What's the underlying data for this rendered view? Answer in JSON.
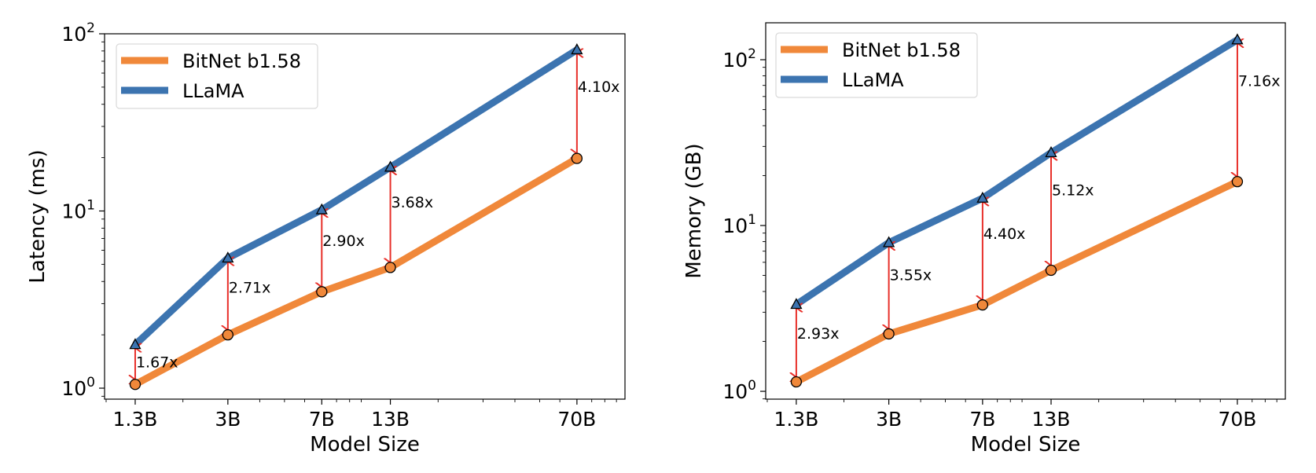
{
  "chart_data": [
    {
      "type": "line",
      "title": "",
      "xlabel": "Model Size",
      "ylabel": "Latency (ms)",
      "xscale": "log",
      "yscale": "log",
      "categories": [
        "1.3B",
        "3B",
        "7B",
        "13B",
        "70B"
      ],
      "x": [
        1.3,
        3,
        7,
        13,
        70
      ],
      "xlim": [
        0.986,
        108
      ],
      "ylim": [
        0.867,
        100
      ],
      "yticks": [
        {
          "value": 1,
          "base": "10",
          "exp": "0"
        },
        {
          "value": 10,
          "base": "10",
          "exp": "1"
        },
        {
          "value": 100,
          "base": "10",
          "exp": "2"
        }
      ],
      "grid": false,
      "legend": "top-left",
      "series": [
        {
          "name": "BitNet b1.58",
          "color": "#F0883A",
          "marker": "circle",
          "values": [
            1.05,
            2.0,
            3.5,
            4.8,
            19.8
          ]
        },
        {
          "name": "LLaMA",
          "color": "#3C74B0",
          "marker": "triangle",
          "values": [
            1.76,
            5.42,
            10.15,
            17.66,
            81.18
          ]
        }
      ],
      "annotations": {
        "color": "#E8302A",
        "labels": [
          "1.67x",
          "2.71x",
          "2.90x",
          "3.68x",
          "4.10x"
        ]
      }
    },
    {
      "type": "line",
      "title": "",
      "xlabel": "Model Size",
      "ylabel": "Memory (GB)",
      "xscale": "log",
      "yscale": "log",
      "categories": [
        "1.3B",
        "3B",
        "7B",
        "13B",
        "70B"
      ],
      "x": [
        1.3,
        3,
        7,
        13,
        70
      ],
      "xlim": [
        0.986,
        108
      ],
      "ylim": [
        0.897,
        167
      ],
      "yticks": [
        {
          "value": 1,
          "base": "10",
          "exp": "0"
        },
        {
          "value": 10,
          "base": "10",
          "exp": "1"
        },
        {
          "value": 100,
          "base": "10",
          "exp": "2"
        }
      ],
      "grid": false,
      "legend": "top-left",
      "series": [
        {
          "name": "BitNet b1.58",
          "color": "#F0883A",
          "marker": "circle",
          "values": [
            1.14,
            2.22,
            3.32,
            5.37,
            18.4
          ]
        },
        {
          "name": "LLaMA",
          "color": "#3C74B0",
          "marker": "triangle",
          "values": [
            3.34,
            7.88,
            14.61,
            27.49,
            131.7
          ]
        }
      ],
      "annotations": {
        "color": "#E8302A",
        "labels": [
          "2.93x",
          "3.55x",
          "4.40x",
          "5.12x",
          "7.16x"
        ]
      }
    }
  ]
}
